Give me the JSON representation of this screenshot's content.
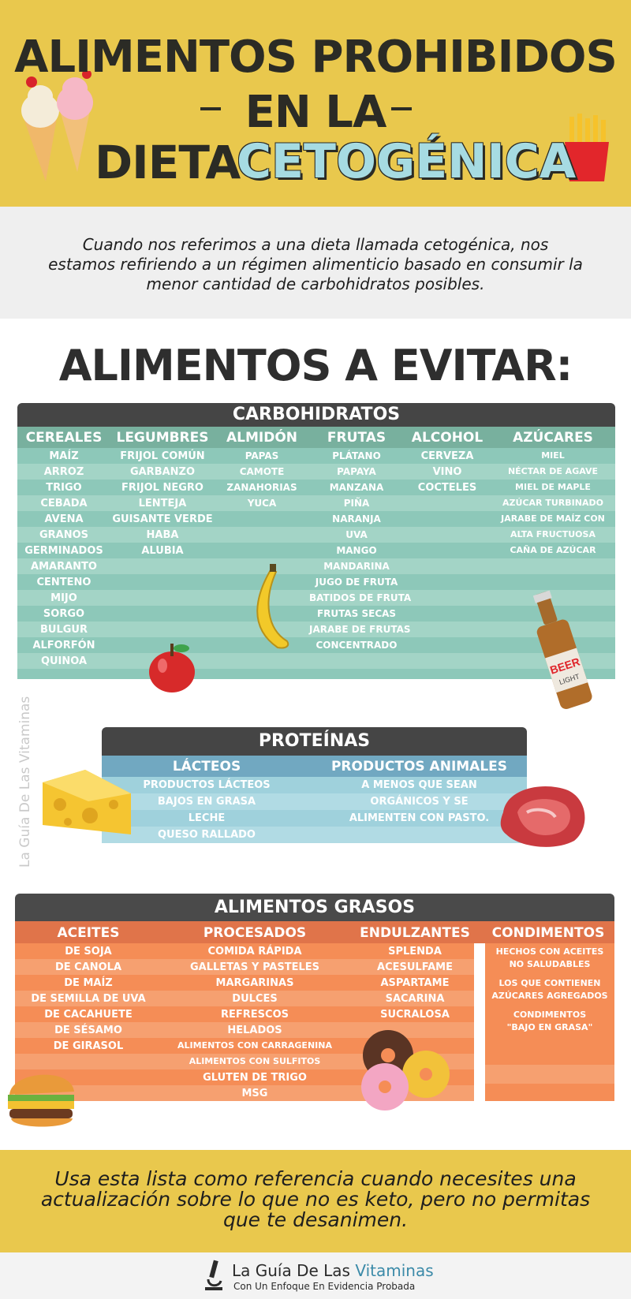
{
  "title": {
    "line1": "ALIMENTOS PROHIBIDOS",
    "line2": "EN LA",
    "line3a": "DIETA",
    "line3b": "CETOGÉNICA"
  },
  "intro": "Cuando nos referimos a una dieta llamada cetogénica, nos estamos refiriendo a un régimen alimenticio basado en consumir la menor cantidad de carbohidratos posibles.",
  "section_heading": "ALIMENTOS A EVITAR:",
  "carbohidratos": {
    "title": "CARBOHIDRATOS",
    "columns": [
      {
        "name": "CEREALES",
        "items": [
          "MAÍZ",
          "ARROZ",
          "TRIGO",
          "CEBADA",
          "AVENA",
          "GRANOS",
          "GERMINADOS",
          "AMARANTO",
          "CENTENO",
          "MIJO",
          "SORGO",
          "BULGUR",
          "ALFORFÓN",
          "QUINOA"
        ]
      },
      {
        "name": "LEGUMBRES",
        "items": [
          "FRIJOL COMÚN",
          "GARBANZO",
          "FRIJOL NEGRO",
          "LENTEJA",
          "GUISANTE VERDE",
          "HABA",
          "ALUBIA"
        ]
      },
      {
        "name": "ALMIDÓN",
        "items": [
          "PAPAS",
          "CAMOTE",
          "ZANAHORIAS",
          "YUCA"
        ]
      },
      {
        "name": "FRUTAS",
        "items": [
          "PLÁTANO",
          "PAPAYA",
          "MANZANA",
          "PIÑA",
          "NARANJA",
          "UVA",
          "MANGO",
          "MANDARINA",
          "JUGO DE FRUTA",
          "BATIDOS DE FRUTA",
          "FRUTAS SECAS",
          "JARABE DE FRUTAS",
          "CONCENTRADO"
        ]
      },
      {
        "name": "ALCOHOL",
        "items": [
          "CERVEZA",
          "VINO",
          "COCTELES"
        ]
      },
      {
        "name": "AZÚCARES",
        "items": [
          "MIEL",
          "NÉCTAR DE AGAVE",
          "MIEL DE MAPLE",
          "AZÚCAR TURBINADO",
          "JARABE DE MAÍZ CON",
          "ALTA FRUCTUOSA",
          "CAÑA DE AZÚCAR"
        ]
      }
    ]
  },
  "proteinas": {
    "title": "PROTEÍNAS",
    "columns": [
      {
        "name": "LÁCTEOS",
        "items": [
          "PRODUCTOS LÁCTEOS",
          "BAJOS EN GRASA",
          "LECHE",
          "QUESO RALLADO"
        ]
      },
      {
        "name": "PRODUCTOS ANIMALES",
        "items": [
          "A MENOS QUE SEAN",
          "ORGÁNICOS Y SE",
          "ALIMENTEN CON PASTO."
        ]
      }
    ]
  },
  "grasos": {
    "title": "ALIMENTOS GRASOS",
    "columns": [
      {
        "name": "ACEITES",
        "items": [
          "DE SOJA",
          "DE CANOLA",
          "DE MAÍZ",
          "DE SEMILLA DE UVA",
          "DE CACAHUETE",
          "DE SÉSAMO",
          "DE GIRASOL"
        ]
      },
      {
        "name": "PROCESADOS",
        "items": [
          "COMIDA RÁPIDA",
          "GALLETAS Y PASTELES",
          "MARGARINAS",
          "DULCES",
          "REFRESCOS",
          "HELADOS",
          "ALIMENTOS CON CARRAGENINA",
          "ALIMENTOS CON SULFITOS",
          "GLUTEN DE TRIGO",
          "MSG"
        ]
      },
      {
        "name": "ENDULZANTES",
        "items": [
          "SPLENDA",
          "ACESULFAME",
          "ASPARTAME",
          "SACARINA",
          "SUCRALOSA"
        ]
      },
      {
        "name": "CONDIMENTOS",
        "items": [
          "HECHOS CON ACEITES",
          "NO SALUDABLES",
          "LOS QUE CONTIENEN",
          "AZÚCARES AGREGADOS",
          "CONDIMENTOS",
          "\"BAJO EN GRASA\""
        ]
      }
    ]
  },
  "footer": "Usa esta lista como referencia cuando necesites una actualización sobre lo que no es keto, pero no permitas que te desanimen.",
  "brand": {
    "name_a": "La Guía De Las ",
    "name_b": "Vitaminas",
    "tagline": "Con Un Enfoque En Evidencia Probada"
  },
  "watermark": "La Guía De Las Vitaminas",
  "colors": {
    "yellow": "#e9c84d",
    "teal": "#8dc8b9",
    "teal_dark": "#78b09e",
    "blue": "#9fd1dc",
    "orange": "#f58d56"
  }
}
